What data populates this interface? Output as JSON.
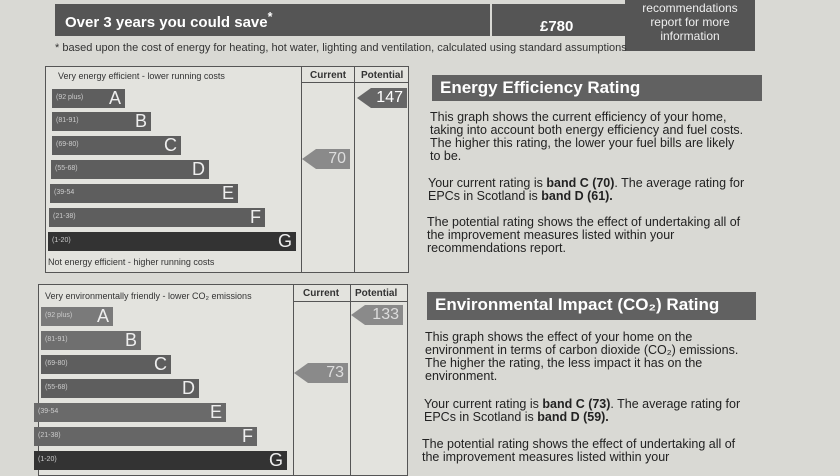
{
  "savings": {
    "label": "Over 3 years you could save",
    "asterisk": "*",
    "amount": "£780",
    "recommend_lines": [
      "recommendations",
      "report for more",
      "information"
    ],
    "footnote": "* based upon the cost of energy for heating, hot water, lighting and ventilation, calculated using standard assumptions"
  },
  "energy": {
    "top_note": "Very energy efficient - lower running costs",
    "bottom_note": "Not energy efficient - higher running costs",
    "current_header": "Current",
    "potential_header": "Potential",
    "bands": [
      {
        "range": "(92 plus)",
        "letter": "A"
      },
      {
        "range": "(81-91)",
        "letter": "B"
      },
      {
        "range": "(69-80)",
        "letter": "C"
      },
      {
        "range": "(55-68)",
        "letter": "D"
      },
      {
        "range": "(39-54",
        "letter": "E"
      },
      {
        "range": "(21-38)",
        "letter": "F"
      },
      {
        "range": "(1-20)",
        "letter": "G"
      }
    ],
    "current_value": "70",
    "potential_value": "147",
    "title": "Energy Efficiency Rating",
    "para1": "This graph shows the current efficiency of your home, taking into account both energy efficiency and fuel costs. The higher this rating, the lower your fuel bills are likely to be.",
    "para2_a": "Your current rating is ",
    "para2_b": "band C (70)",
    "para2_c": ". The average rating for EPCs in Scotland is ",
    "para2_d": "band D (61).",
    "para3": "The potential rating shows the effect of undertaking all of the improvement measures listed within your recommendations report."
  },
  "environment": {
    "top_note": "Very environmentally friendly - lower CO₂ emissions",
    "current_header": "Current",
    "potential_header": "Potential",
    "bands": [
      {
        "range": "(92 plus)",
        "letter": "A"
      },
      {
        "range": "(81-91)",
        "letter": "B"
      },
      {
        "range": "(69-80)",
        "letter": "C"
      },
      {
        "range": "(55-68)",
        "letter": "D"
      },
      {
        "range": "(39-54",
        "letter": "E"
      },
      {
        "range": "(21-38)",
        "letter": "F"
      },
      {
        "range": "(1-20)",
        "letter": "G"
      }
    ],
    "current_value": "73",
    "potential_value": "133",
    "title": "Environmental Impact (CO₂) Rating",
    "para1": "This graph shows the effect of your home on the environment in terms of carbon dioxide (CO₂) emissions. The higher the rating, the less impact it has on the environment.",
    "para2_a": "Your current rating is ",
    "para2_b": "band C (73)",
    "para2_c": ". The average rating for EPCs in Scotland is ",
    "para2_d": "band D (59).",
    "para3": "The potential rating shows the effect of undertaking all of the improvement measures listed within your"
  }
}
